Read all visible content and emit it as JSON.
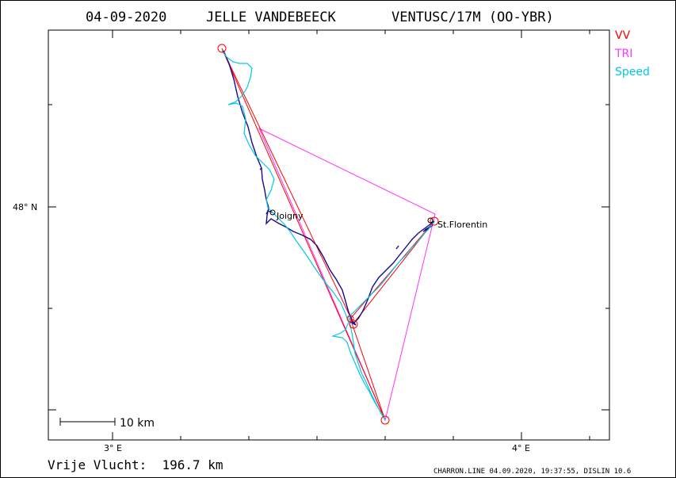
{
  "header": {
    "date": "04-09-2020",
    "pilot": "JELLE VANDEBEECK",
    "glider": "VENTUSC/17M (OO-YBR)"
  },
  "legend": [
    {
      "label": "VV",
      "color": "#ff0000"
    },
    {
      "label": "TRI",
      "color": "#ff33ff"
    },
    {
      "label": "Speed",
      "color": "#00c8e8"
    }
  ],
  "axes": {
    "lat_label": "48° N",
    "lon_label_west": "3° E",
    "lon_label_east": "4° E"
  },
  "scale_bar": {
    "label": "10 km"
  },
  "places": [
    {
      "name": "Joigny"
    },
    {
      "name": "St.Florentin"
    }
  ],
  "footer": {
    "distance": "Vrije Vlucht:  196.7 km",
    "credit": "CHARRON.LINE 04.09.2020, 19:37:55, DISLIN 10.6"
  },
  "colors": {
    "free_flight": "#ff0000",
    "triangle": "#ff33ff",
    "speed_track": "#00c8e8",
    "track": "#1a0a8c",
    "turnpoint": "#ff0000"
  }
}
